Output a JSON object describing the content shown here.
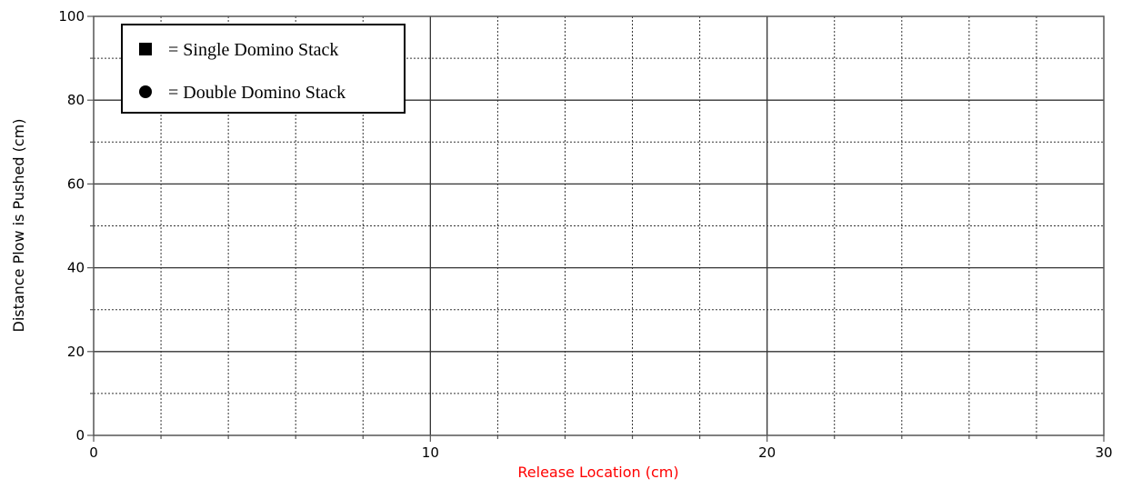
{
  "chart_data": {
    "type": "scatter",
    "title": "",
    "xlabel": "Release Location (cm)",
    "ylabel": "Distance Plow is Pushed (cm)",
    "xlim": [
      0,
      30
    ],
    "ylim": [
      0,
      100
    ],
    "x_major_ticks": [
      0,
      10,
      20,
      30
    ],
    "x_minor_step": 2,
    "y_major_ticks": [
      0,
      20,
      40,
      60,
      80,
      100
    ],
    "y_minor_step": 10,
    "grid": true,
    "legend_position": "top-left",
    "legend": [
      {
        "marker": "square",
        "label": "= Single Domino Stack"
      },
      {
        "marker": "circle",
        "label": "= Double Domino Stack"
      }
    ],
    "series": [
      {
        "name": "Single Domino Stack",
        "marker": "square",
        "points": []
      },
      {
        "name": "Double Domino Stack",
        "marker": "circle",
        "points": []
      }
    ],
    "colors": {
      "xlabel": "#ff0000",
      "ylabel": "#000000",
      "grid_major": "#333333",
      "grid_minor": "#333333",
      "frame": "#555555"
    }
  }
}
